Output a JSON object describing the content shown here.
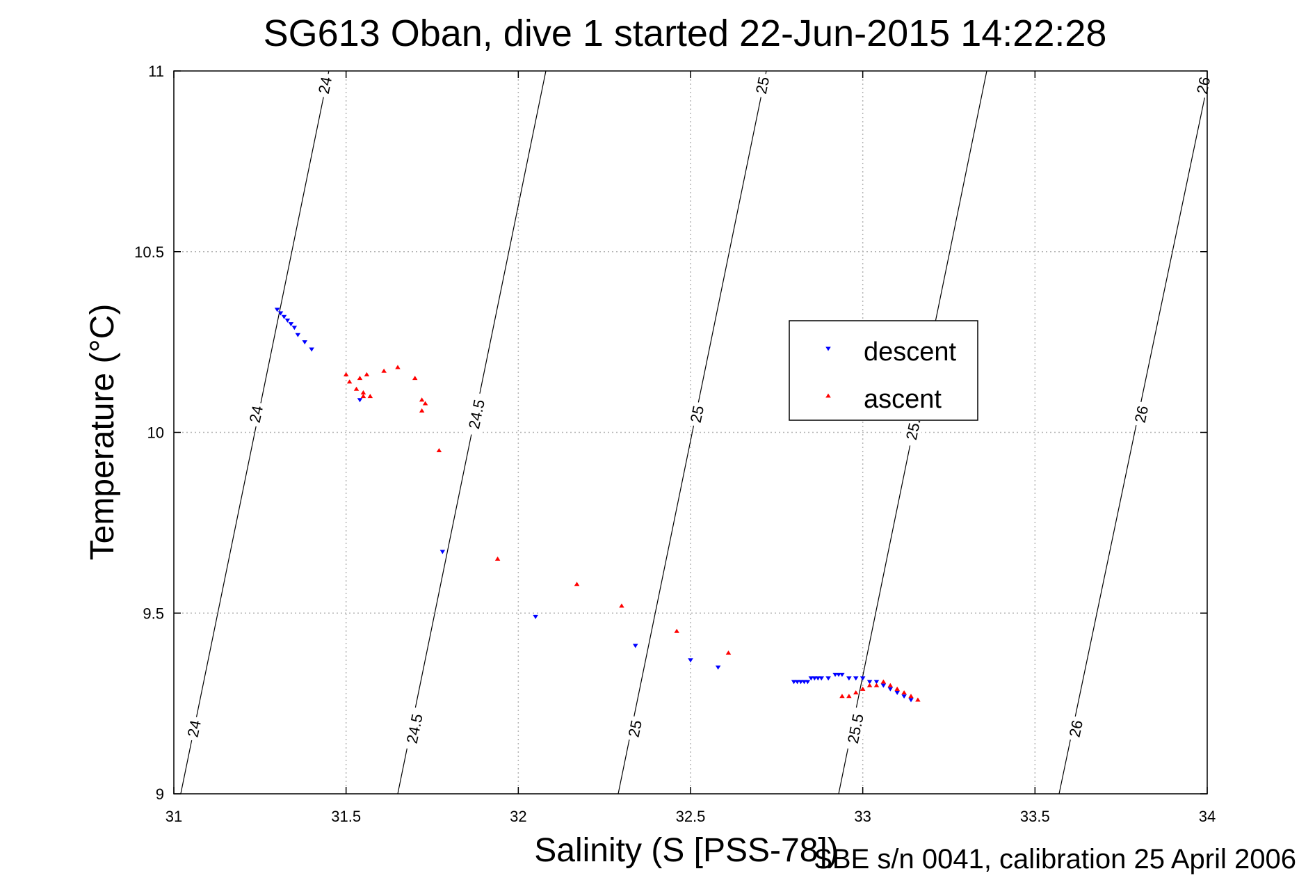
{
  "chart_data": {
    "type": "scatter",
    "title": "SG613 Oban, dive 1 started 22-Jun-2015 14:22:28",
    "xlabel": "Salinity (S [PSS-78])",
    "ylabel": "Temperature (°C)",
    "footer": "SBE s/n 0041, calibration 25 April 2006",
    "xlim": [
      31,
      34
    ],
    "ylim": [
      9,
      11
    ],
    "xticks": [
      "31",
      "31.5",
      "32",
      "32.5",
      "33",
      "33.5",
      "34"
    ],
    "yticks": [
      "9",
      "9.5",
      "10",
      "10.5",
      "11"
    ],
    "grid": true,
    "legend_position": "center-right",
    "isopycnals": [
      {
        "label": "24",
        "bottom": [
          31.02,
          9.0
        ],
        "top": [
          31.45,
          11.0
        ],
        "label_points": [
          [
            31.44,
            10.96
          ],
          [
            31.24,
            10.05
          ],
          [
            31.06,
            9.18
          ]
        ]
      },
      {
        "label": "24.5",
        "bottom": [
          31.65,
          9.0
        ],
        "top": [
          32.08,
          11.0
        ],
        "label_points": [
          [
            31.88,
            10.05
          ],
          [
            31.7,
            9.18
          ]
        ]
      },
      {
        "label": "25",
        "bottom": [
          32.29,
          9.0
        ],
        "top": [
          32.72,
          11.0
        ],
        "label_points": [
          [
            32.71,
            10.96
          ],
          [
            32.52,
            10.05
          ],
          [
            32.34,
            9.18
          ]
        ]
      },
      {
        "label": "25.5",
        "bottom": [
          32.93,
          9.0
        ],
        "top": [
          33.36,
          11.0
        ],
        "label_points": [
          [
            33.15,
            10.02
          ],
          [
            32.98,
            9.18
          ]
        ]
      },
      {
        "label": "26",
        "bottom": [
          33.57,
          9.0
        ],
        "top": [
          34.0,
          10.96
        ],
        "label_points": [
          [
            33.99,
            10.96
          ],
          [
            33.81,
            10.05
          ],
          [
            33.62,
            9.18
          ]
        ]
      }
    ],
    "series": [
      {
        "name": "descent",
        "color": "#0000ff",
        "marker": "triangle-down",
        "x": [
          31.3,
          31.31,
          31.32,
          31.33,
          31.34,
          31.35,
          31.36,
          31.38,
          31.4,
          31.54,
          31.78,
          32.05,
          32.34,
          32.5,
          32.58,
          32.8,
          32.81,
          32.82,
          32.83,
          32.84,
          32.85,
          32.86,
          32.87,
          32.88,
          32.9,
          32.92,
          32.93,
          32.94,
          32.96,
          32.98,
          33.0,
          33.02,
          33.04,
          33.06,
          33.08,
          33.1,
          33.12,
          33.14
        ],
        "y": [
          10.34,
          10.33,
          10.32,
          10.31,
          10.3,
          10.29,
          10.27,
          10.25,
          10.23,
          10.09,
          9.67,
          9.49,
          9.41,
          9.37,
          9.35,
          9.31,
          9.31,
          9.31,
          9.31,
          9.31,
          9.32,
          9.32,
          9.32,
          9.32,
          9.32,
          9.33,
          9.33,
          9.33,
          9.32,
          9.32,
          9.32,
          9.31,
          9.31,
          9.3,
          9.29,
          9.28,
          9.27,
          9.26
        ]
      },
      {
        "name": "ascent",
        "color": "#ff0000",
        "marker": "triangle-up",
        "x": [
          31.5,
          31.51,
          31.53,
          31.54,
          31.55,
          31.55,
          31.56,
          31.57,
          31.61,
          31.65,
          31.7,
          31.72,
          31.73,
          31.72,
          31.77,
          31.94,
          32.17,
          32.3,
          32.46,
          32.61,
          32.94,
          32.96,
          32.98,
          33.0,
          33.02,
          33.04,
          33.06,
          33.08,
          33.1,
          33.12,
          33.14,
          33.16
        ],
        "y": [
          10.16,
          10.14,
          10.12,
          10.15,
          10.11,
          10.1,
          10.16,
          10.1,
          10.17,
          10.18,
          10.15,
          10.09,
          10.08,
          10.06,
          9.95,
          9.65,
          9.58,
          9.52,
          9.45,
          9.39,
          9.27,
          9.27,
          9.28,
          9.29,
          9.3,
          9.3,
          9.31,
          9.3,
          9.29,
          9.28,
          9.27,
          9.26
        ]
      }
    ]
  }
}
